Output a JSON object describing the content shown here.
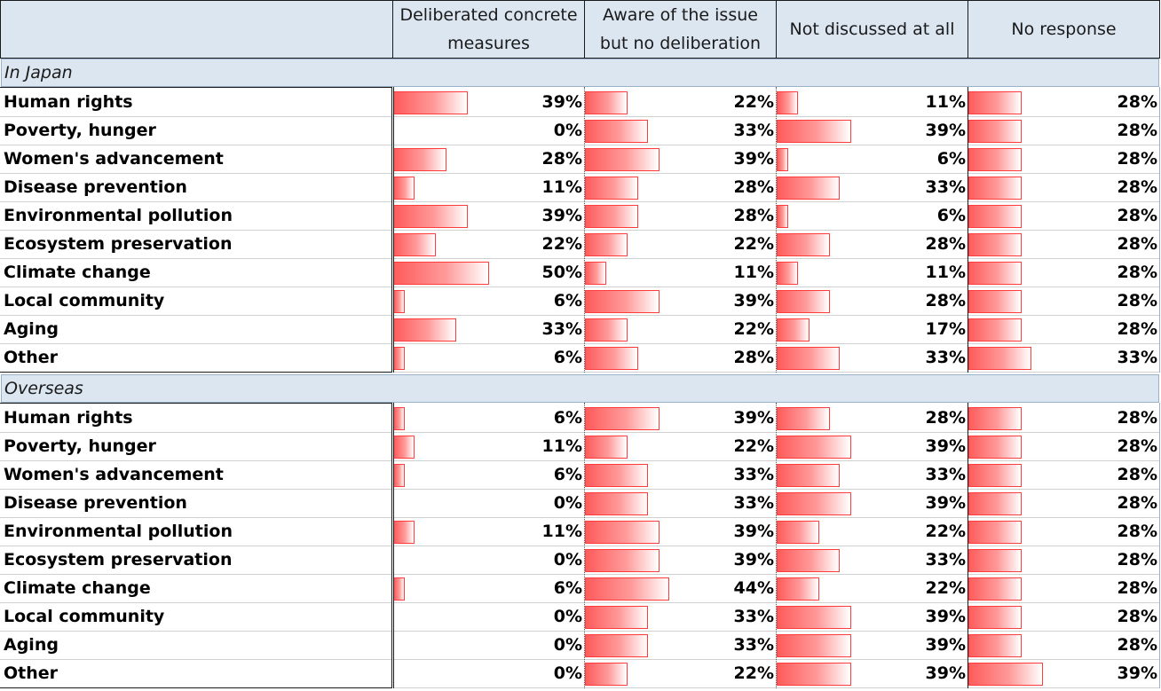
{
  "chart_data": {
    "type": "table",
    "columns": [
      "Deliberated concrete\nmeasures",
      "Aware of the issue\nbut no deliberation",
      "Not discussed at all",
      "No response"
    ],
    "groups": [
      {
        "name": "In Japan",
        "rows": [
          {
            "label": "Human rights",
            "values": [
              39,
              22,
              11,
              28
            ]
          },
          {
            "label": "Poverty, hunger",
            "values": [
              0,
              33,
              39,
              28
            ]
          },
          {
            "label": "Women's advancement",
            "values": [
              28,
              39,
              6,
              28
            ]
          },
          {
            "label": "Disease prevention",
            "values": [
              11,
              28,
              33,
              28
            ]
          },
          {
            "label": "Environmental pollution",
            "values": [
              39,
              28,
              6,
              28
            ]
          },
          {
            "label": "Ecosystem preservation",
            "values": [
              22,
              22,
              28,
              28
            ]
          },
          {
            "label": "Climate change",
            "values": [
              50,
              11,
              11,
              28
            ]
          },
          {
            "label": "Local community",
            "values": [
              6,
              39,
              28,
              28
            ]
          },
          {
            "label": "Aging",
            "values": [
              33,
              22,
              17,
              28
            ]
          },
          {
            "label": "Other",
            "values": [
              6,
              28,
              33,
              33
            ]
          }
        ]
      },
      {
        "name": "Overseas",
        "rows": [
          {
            "label": "Human rights",
            "values": [
              6,
              39,
              28,
              28
            ]
          },
          {
            "label": "Poverty, hunger",
            "values": [
              11,
              22,
              39,
              28
            ]
          },
          {
            "label": "Women's advancement",
            "values": [
              6,
              33,
              33,
              28
            ]
          },
          {
            "label": "Disease prevention",
            "values": [
              0,
              33,
              39,
              28
            ]
          },
          {
            "label": "Environmental pollution",
            "values": [
              11,
              39,
              22,
              28
            ]
          },
          {
            "label": "Ecosystem preservation",
            "values": [
              0,
              39,
              33,
              28
            ]
          },
          {
            "label": "Climate change",
            "values": [
              6,
              44,
              22,
              28
            ]
          },
          {
            "label": "Local community",
            "values": [
              0,
              33,
              39,
              28
            ]
          },
          {
            "label": "Aging",
            "values": [
              0,
              33,
              39,
              28
            ]
          },
          {
            "label": "Other",
            "values": [
              0,
              22,
              39,
              39
            ]
          }
        ]
      }
    ],
    "value_suffix": "%",
    "bar_scale_max": 100,
    "bar_colors": {
      "start": "#ff5b5b",
      "end": "#ffffff",
      "border": "#ff3b3b"
    },
    "header_bg": "#dce6f1"
  }
}
